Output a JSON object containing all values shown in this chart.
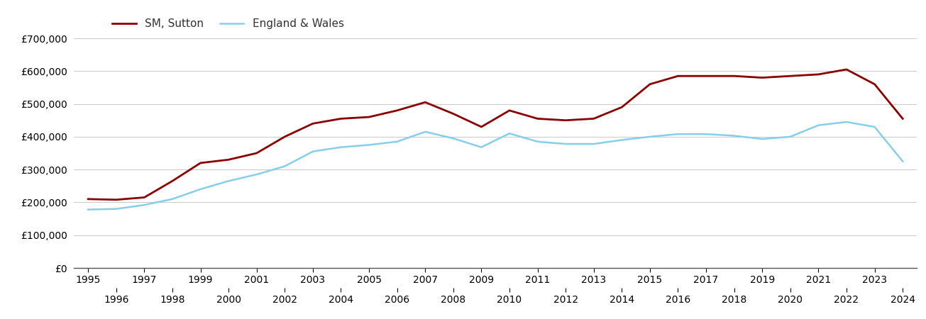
{
  "sutton_years": [
    1995,
    1996,
    1997,
    1998,
    1999,
    2000,
    2001,
    2002,
    2003,
    2004,
    2005,
    2006,
    2007,
    2008,
    2009,
    2010,
    2011,
    2012,
    2013,
    2014,
    2015,
    2016,
    2017,
    2018,
    2019,
    2020,
    2021,
    2022,
    2023,
    2024
  ],
  "sutton_values": [
    210000,
    208000,
    215000,
    265000,
    320000,
    330000,
    350000,
    400000,
    440000,
    455000,
    460000,
    480000,
    505000,
    470000,
    430000,
    480000,
    455000,
    450000,
    455000,
    490000,
    560000,
    585000,
    585000,
    585000,
    580000,
    585000,
    590000,
    605000,
    560000,
    455000
  ],
  "england_years": [
    1995,
    1996,
    1997,
    1998,
    1999,
    2000,
    2001,
    2002,
    2003,
    2004,
    2005,
    2006,
    2007,
    2008,
    2009,
    2010,
    2011,
    2012,
    2013,
    2014,
    2015,
    2016,
    2017,
    2018,
    2019,
    2020,
    2021,
    2022,
    2023,
    2024
  ],
  "england_values": [
    178000,
    180000,
    192000,
    210000,
    240000,
    265000,
    285000,
    310000,
    355000,
    368000,
    375000,
    385000,
    415000,
    395000,
    368000,
    410000,
    385000,
    378000,
    378000,
    390000,
    400000,
    408000,
    408000,
    403000,
    393000,
    400000,
    435000,
    445000,
    430000,
    325000
  ],
  "sutton_color": "#8B0000",
  "england_color": "#87CEEB",
  "sutton_label": "SM, Sutton",
  "england_label": "England & Wales",
  "ylim": [
    0,
    700000
  ],
  "yticks": [
    0,
    100000,
    200000,
    300000,
    400000,
    500000,
    600000,
    700000
  ],
  "ytick_labels": [
    "£0",
    "£100,000",
    "£200,000",
    "£300,000",
    "£400,000",
    "£500,000",
    "£600,000",
    "£700,000"
  ],
  "xticks_odd": [
    1995,
    1997,
    1999,
    2001,
    2003,
    2005,
    2007,
    2009,
    2011,
    2013,
    2015,
    2017,
    2019,
    2021,
    2023
  ],
  "xticks_even": [
    1996,
    1998,
    2000,
    2002,
    2004,
    2006,
    2008,
    2010,
    2012,
    2014,
    2016,
    2018,
    2020,
    2022,
    2024
  ],
  "line_width": 2.0,
  "background_color": "#ffffff",
  "grid_color": "#cccccc",
  "legend_fontsize": 11,
  "tick_fontsize": 10,
  "england_linewidth": 1.8,
  "xlim_left": 1994.5,
  "xlim_right": 2024.5
}
